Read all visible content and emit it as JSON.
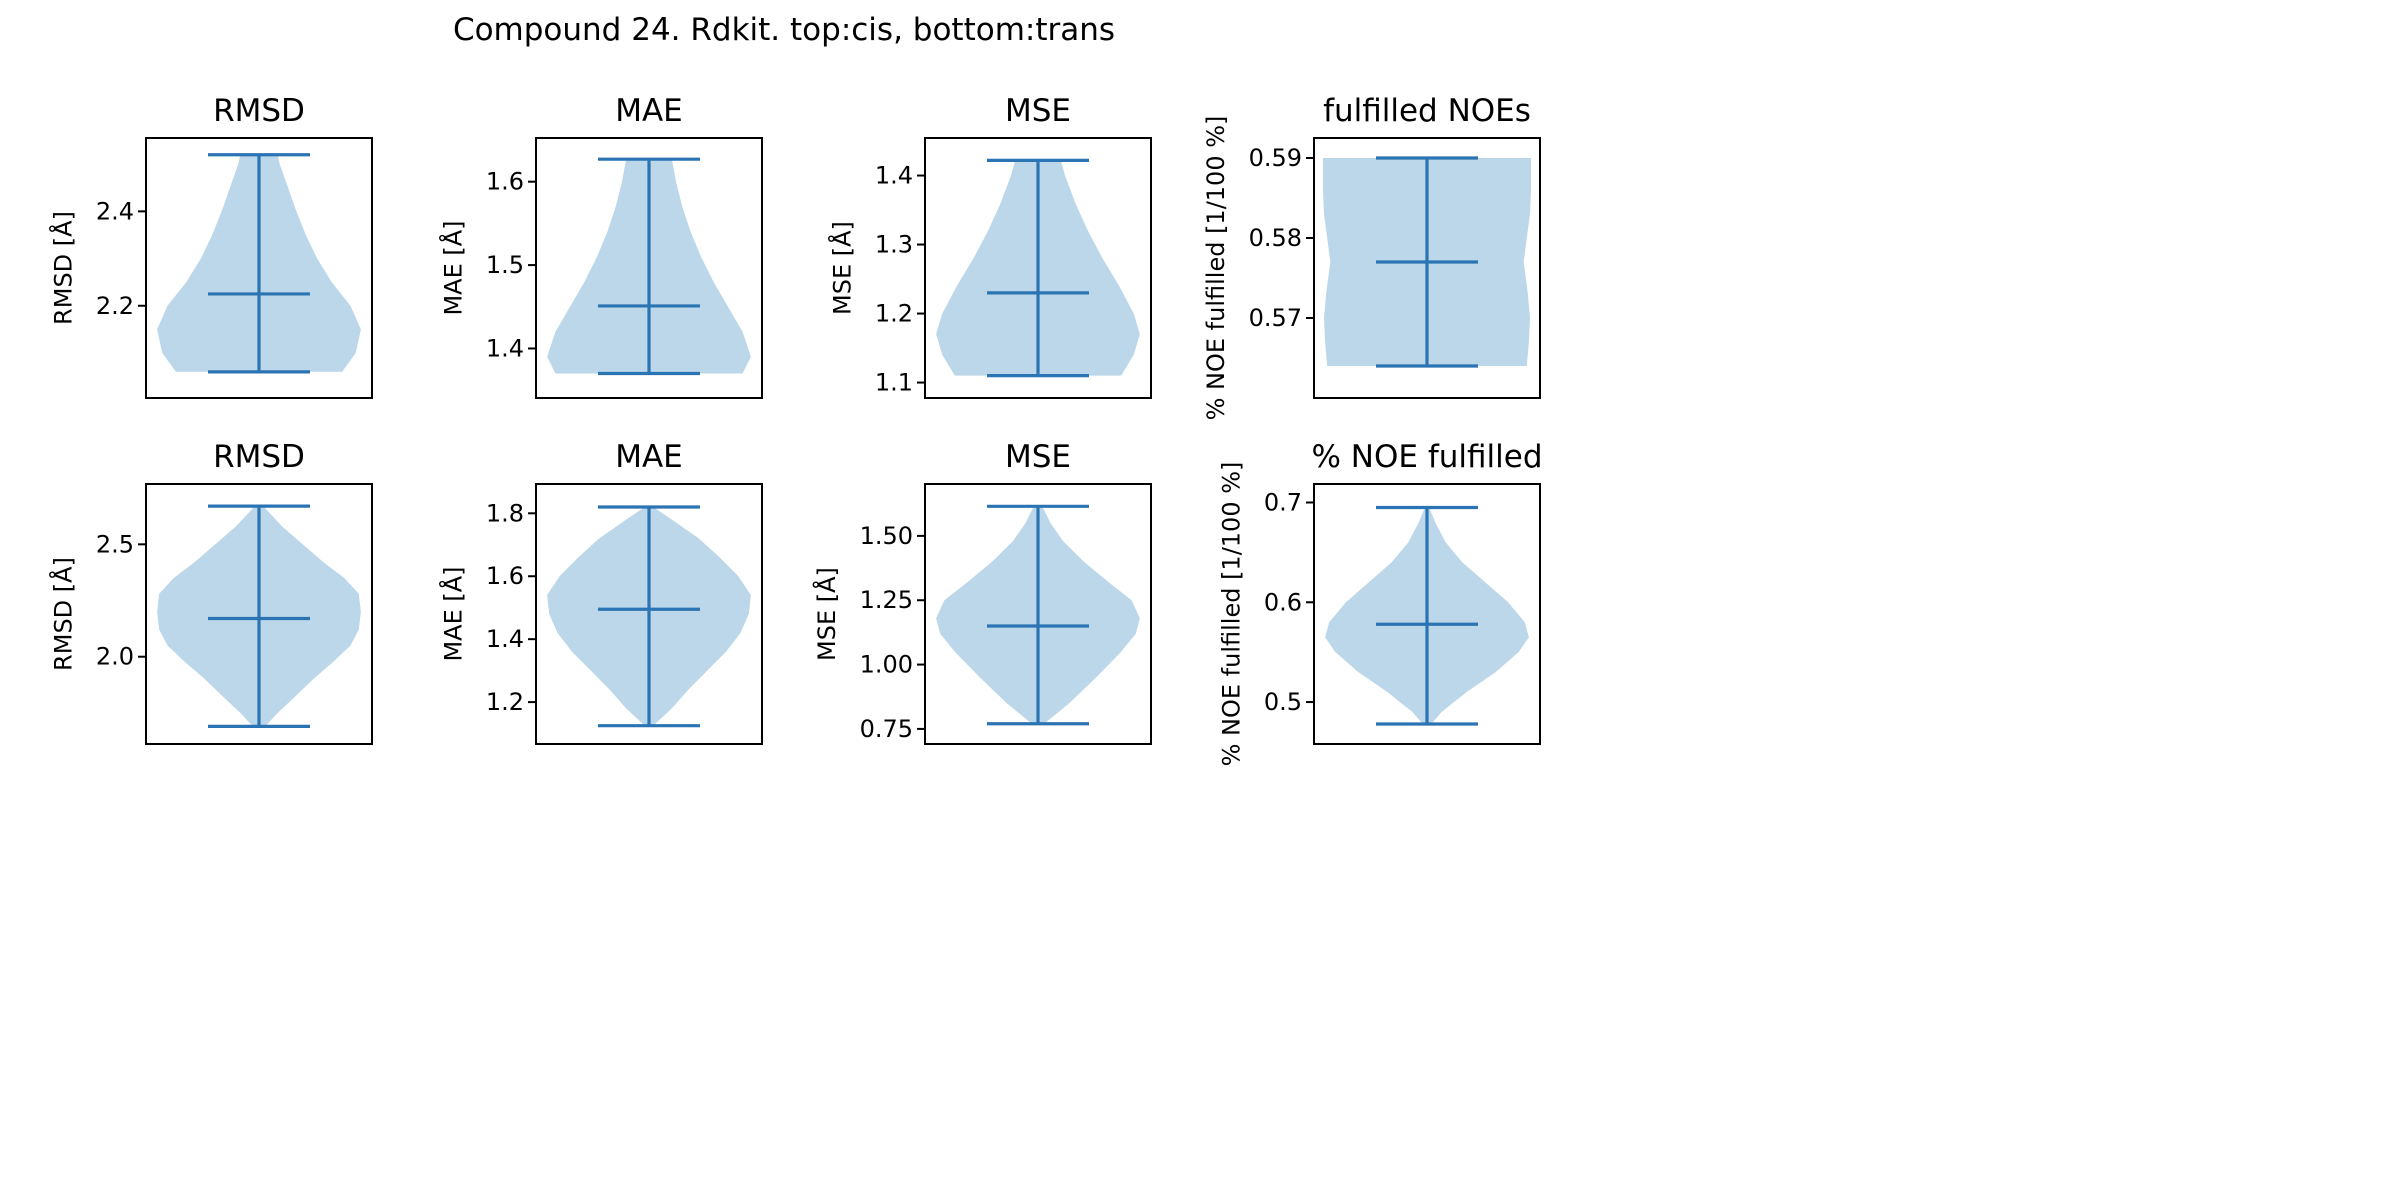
{
  "figure": {
    "suptitle": "Compound 24. Rdkit. top:cis, bottom:trans"
  },
  "colors": {
    "violin_fill": "#bcd7ea",
    "line": "#2b74b3",
    "frame": "#000000",
    "background": "#ffffff"
  },
  "chart_data": [
    {
      "type": "violin",
      "row": "top",
      "title": "RMSD",
      "ylabel": "RMSD [Å]",
      "ylim": [
        2.03,
        2.53
      ],
      "yticks": [
        2.2,
        2.4
      ],
      "tick_labels": [
        "2.2",
        "2.4"
      ],
      "min": 2.06,
      "max": 2.52,
      "mean": 2.225,
      "density": [
        [
          2.06,
          0.8
        ],
        [
          2.1,
          0.93
        ],
        [
          2.15,
          0.98
        ],
        [
          2.2,
          0.88
        ],
        [
          2.25,
          0.7
        ],
        [
          2.3,
          0.56
        ],
        [
          2.35,
          0.45
        ],
        [
          2.4,
          0.36
        ],
        [
          2.45,
          0.28
        ],
        [
          2.5,
          0.2
        ],
        [
          2.52,
          0.18
        ]
      ]
    },
    {
      "type": "violin",
      "row": "top",
      "title": "MAE",
      "ylabel": "MAE [Å]",
      "ylim": [
        1.355,
        1.638
      ],
      "yticks": [
        1.4,
        1.5,
        1.6
      ],
      "tick_labels": [
        "1.4",
        "1.5",
        "1.6"
      ],
      "min": 1.37,
      "max": 1.627,
      "mean": 1.451,
      "density": [
        [
          1.37,
          0.9
        ],
        [
          1.39,
          0.98
        ],
        [
          1.42,
          0.9
        ],
        [
          1.45,
          0.76
        ],
        [
          1.48,
          0.62
        ],
        [
          1.51,
          0.5
        ],
        [
          1.54,
          0.4
        ],
        [
          1.57,
          0.32
        ],
        [
          1.6,
          0.26
        ],
        [
          1.627,
          0.22
        ]
      ]
    },
    {
      "type": "violin",
      "row": "top",
      "title": "MSE",
      "ylabel": "MSE [Å]",
      "ylim": [
        1.095,
        1.437
      ],
      "yticks": [
        1.1,
        1.2,
        1.3,
        1.4
      ],
      "tick_labels": [
        "1.1",
        "1.2",
        "1.3",
        "1.4"
      ],
      "min": 1.11,
      "max": 1.422,
      "mean": 1.23,
      "density": [
        [
          1.11,
          0.8
        ],
        [
          1.14,
          0.92
        ],
        [
          1.17,
          0.98
        ],
        [
          1.2,
          0.92
        ],
        [
          1.24,
          0.78
        ],
        [
          1.28,
          0.62
        ],
        [
          1.32,
          0.48
        ],
        [
          1.36,
          0.36
        ],
        [
          1.4,
          0.26
        ],
        [
          1.422,
          0.22
        ]
      ]
    },
    {
      "type": "violin",
      "row": "top",
      "title": "fulfilled NOEs",
      "ylabel": "% NOE fulfilled [1/100 %]",
      "ylim": [
        0.5615,
        0.591
      ],
      "yticks": [
        0.57,
        0.58,
        0.59
      ],
      "tick_labels": [
        "0.57",
        "0.58",
        "0.59"
      ],
      "min": 0.564,
      "max": 0.59,
      "mean": 0.577,
      "density": [
        [
          0.564,
          0.96
        ],
        [
          0.567,
          0.98
        ],
        [
          0.57,
          0.99
        ],
        [
          0.573,
          0.97
        ],
        [
          0.577,
          0.93
        ],
        [
          0.58,
          0.96
        ],
        [
          0.583,
          0.99
        ],
        [
          0.586,
          1.0
        ],
        [
          0.59,
          1.0
        ]
      ]
    },
    {
      "type": "violin",
      "row": "bottom",
      "title": "RMSD",
      "ylabel": "RMSD [Å]",
      "ylim": [
        1.665,
        2.715
      ],
      "yticks": [
        2.0,
        2.5
      ],
      "tick_labels": [
        "2.0",
        "2.5"
      ],
      "min": 1.69,
      "max": 2.67,
      "mean": 2.17,
      "density": [
        [
          1.69,
          0.06
        ],
        [
          1.75,
          0.18
        ],
        [
          1.82,
          0.34
        ],
        [
          1.9,
          0.52
        ],
        [
          1.98,
          0.72
        ],
        [
          2.05,
          0.88
        ],
        [
          2.12,
          0.96
        ],
        [
          2.2,
          0.98
        ],
        [
          2.28,
          0.96
        ],
        [
          2.35,
          0.82
        ],
        [
          2.42,
          0.62
        ],
        [
          2.5,
          0.42
        ],
        [
          2.58,
          0.22
        ],
        [
          2.67,
          0.04
        ]
      ]
    },
    {
      "type": "violin",
      "row": "bottom",
      "title": "MAE",
      "ylabel": "MAE [Å]",
      "ylim": [
        1.105,
        1.855
      ],
      "yticks": [
        1.2,
        1.4,
        1.6,
        1.8
      ],
      "tick_labels": [
        "1.2",
        "1.4",
        "1.6",
        "1.8"
      ],
      "min": 1.125,
      "max": 1.82,
      "mean": 1.495,
      "density": [
        [
          1.125,
          0.04
        ],
        [
          1.18,
          0.22
        ],
        [
          1.24,
          0.38
        ],
        [
          1.3,
          0.56
        ],
        [
          1.36,
          0.74
        ],
        [
          1.42,
          0.88
        ],
        [
          1.48,
          0.96
        ],
        [
          1.54,
          0.98
        ],
        [
          1.6,
          0.86
        ],
        [
          1.66,
          0.68
        ],
        [
          1.72,
          0.48
        ],
        [
          1.78,
          0.22
        ],
        [
          1.82,
          0.04
        ]
      ]
    },
    {
      "type": "violin",
      "row": "bottom",
      "title": "MSE",
      "ylabel": "MSE [Å]",
      "ylim": [
        0.738,
        1.655
      ],
      "yticks": [
        0.75,
        1.0,
        1.25,
        1.5
      ],
      "tick_labels": [
        "0.75",
        "1.00",
        "1.25",
        "1.50"
      ],
      "min": 0.77,
      "max": 1.615,
      "mean": 1.15,
      "density": [
        [
          0.77,
          0.06
        ],
        [
          0.85,
          0.3
        ],
        [
          0.95,
          0.56
        ],
        [
          1.05,
          0.8
        ],
        [
          1.12,
          0.94
        ],
        [
          1.18,
          0.98
        ],
        [
          1.25,
          0.9
        ],
        [
          1.32,
          0.68
        ],
        [
          1.4,
          0.44
        ],
        [
          1.48,
          0.24
        ],
        [
          1.55,
          0.12
        ],
        [
          1.615,
          0.04
        ]
      ]
    },
    {
      "type": "violin",
      "row": "bottom",
      "title": "% NOE fulfilled",
      "ylabel": "% NOE fulfilled [1/100 %]",
      "ylim": [
        0.47,
        0.7065
      ],
      "yticks": [
        0.5,
        0.6,
        0.7
      ],
      "tick_labels": [
        "0.5",
        "0.6",
        "0.7"
      ],
      "min": 0.478,
      "max": 0.695,
      "mean": 0.578,
      "density": [
        [
          0.478,
          0.04
        ],
        [
          0.49,
          0.14
        ],
        [
          0.51,
          0.38
        ],
        [
          0.53,
          0.66
        ],
        [
          0.55,
          0.88
        ],
        [
          0.565,
          0.98
        ],
        [
          0.58,
          0.94
        ],
        [
          0.6,
          0.78
        ],
        [
          0.62,
          0.56
        ],
        [
          0.64,
          0.34
        ],
        [
          0.66,
          0.18
        ],
        [
          0.68,
          0.08
        ],
        [
          0.695,
          0.02
        ]
      ]
    }
  ]
}
